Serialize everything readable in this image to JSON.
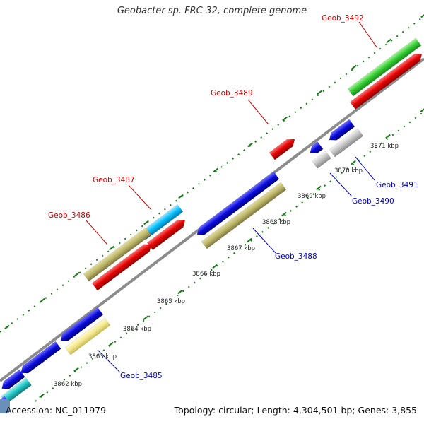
{
  "title": "Geobacter sp. FRC-32, complete genome",
  "footer": {
    "accession": "Accession: NC_011979",
    "topology": "Topology: circular; Length: 4,304,501 bp; Genes: 3,855"
  },
  "tick_labels": [
    "3862 kbp",
    "3863 kbp",
    "3864 kbp",
    "3865 kbp",
    "3866 kbp",
    "3867 kbp",
    "3868 kbp",
    "3869 kbp",
    "3870 kbp",
    "3871 kbp"
  ],
  "genes": [
    {
      "id": "Geob_3485",
      "color": "#0000cc"
    },
    {
      "id": "Geob_3486",
      "color": "#cc0000"
    },
    {
      "id": "Geob_3487",
      "color": "#cc0000"
    },
    {
      "id": "Geob_3488",
      "color": "#0000cc"
    },
    {
      "id": "Geob_3489",
      "color": "#cc0000"
    },
    {
      "id": "Geob_3490",
      "color": "#0000cc"
    },
    {
      "id": "Geob_3491",
      "color": "#0000cc"
    },
    {
      "id": "Geob_3492",
      "color": "#cc0000"
    }
  ],
  "colors": {
    "forward_label": "#cc0000",
    "reverse_label": "#0000cc",
    "tick": "#1a7a1a",
    "backbone": "#8c8c8c",
    "blue_cds": "#0a0adc",
    "red_cds": "#e60000",
    "green_cds": "#33cc33",
    "olive_feature": "#bdb76b",
    "khaki_feature": "#f0e68c",
    "cyan_feature": "#00bfff",
    "teal_feature": "#20c4c4",
    "grey_feature": "#bdbdbd"
  }
}
